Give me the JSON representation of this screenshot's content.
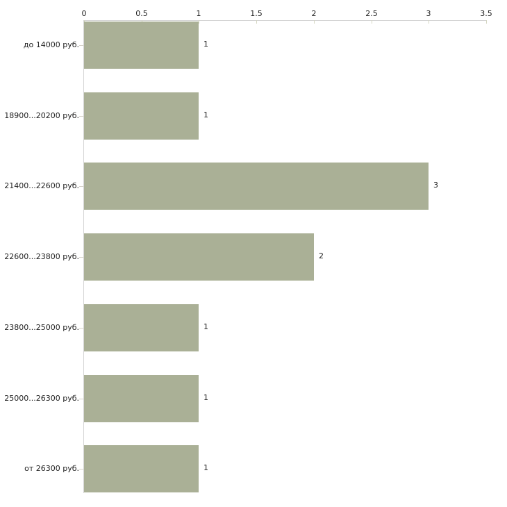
{
  "chart_data": {
    "type": "bar",
    "orientation": "horizontal",
    "title": "",
    "xlabel": "",
    "ylabel": "",
    "grid": false,
    "legend_position": "none",
    "axis_position": "top",
    "categories": [
      "до 14000 руб.",
      "18900...20200 руб.",
      "21400...22600 руб.",
      "22600...23800 руб.",
      "23800...25000 руб.",
      "25000...26300 руб.",
      "от 26300 руб."
    ],
    "values": [
      1,
      1,
      3,
      2,
      1,
      1,
      1
    ],
    "value_labels": [
      "1",
      "1",
      "3",
      "2",
      "1",
      "1",
      "1"
    ],
    "xlim": [
      0,
      3.5
    ],
    "x_ticks": [
      0,
      0.5,
      1,
      1.5,
      2,
      2.5,
      3,
      3.5
    ],
    "x_tick_labels": [
      "0",
      "0.5",
      "1",
      "1.5",
      "2",
      "2.5",
      "3",
      "3.5"
    ],
    "colors": {
      "bar_fill": "#aab096",
      "axis_line": "#d4d4d4",
      "x_tick_mark": "#d5d7c3",
      "y_tick_mark": "#d6d2c9",
      "text": "#222222",
      "background": "#ffffff"
    }
  }
}
